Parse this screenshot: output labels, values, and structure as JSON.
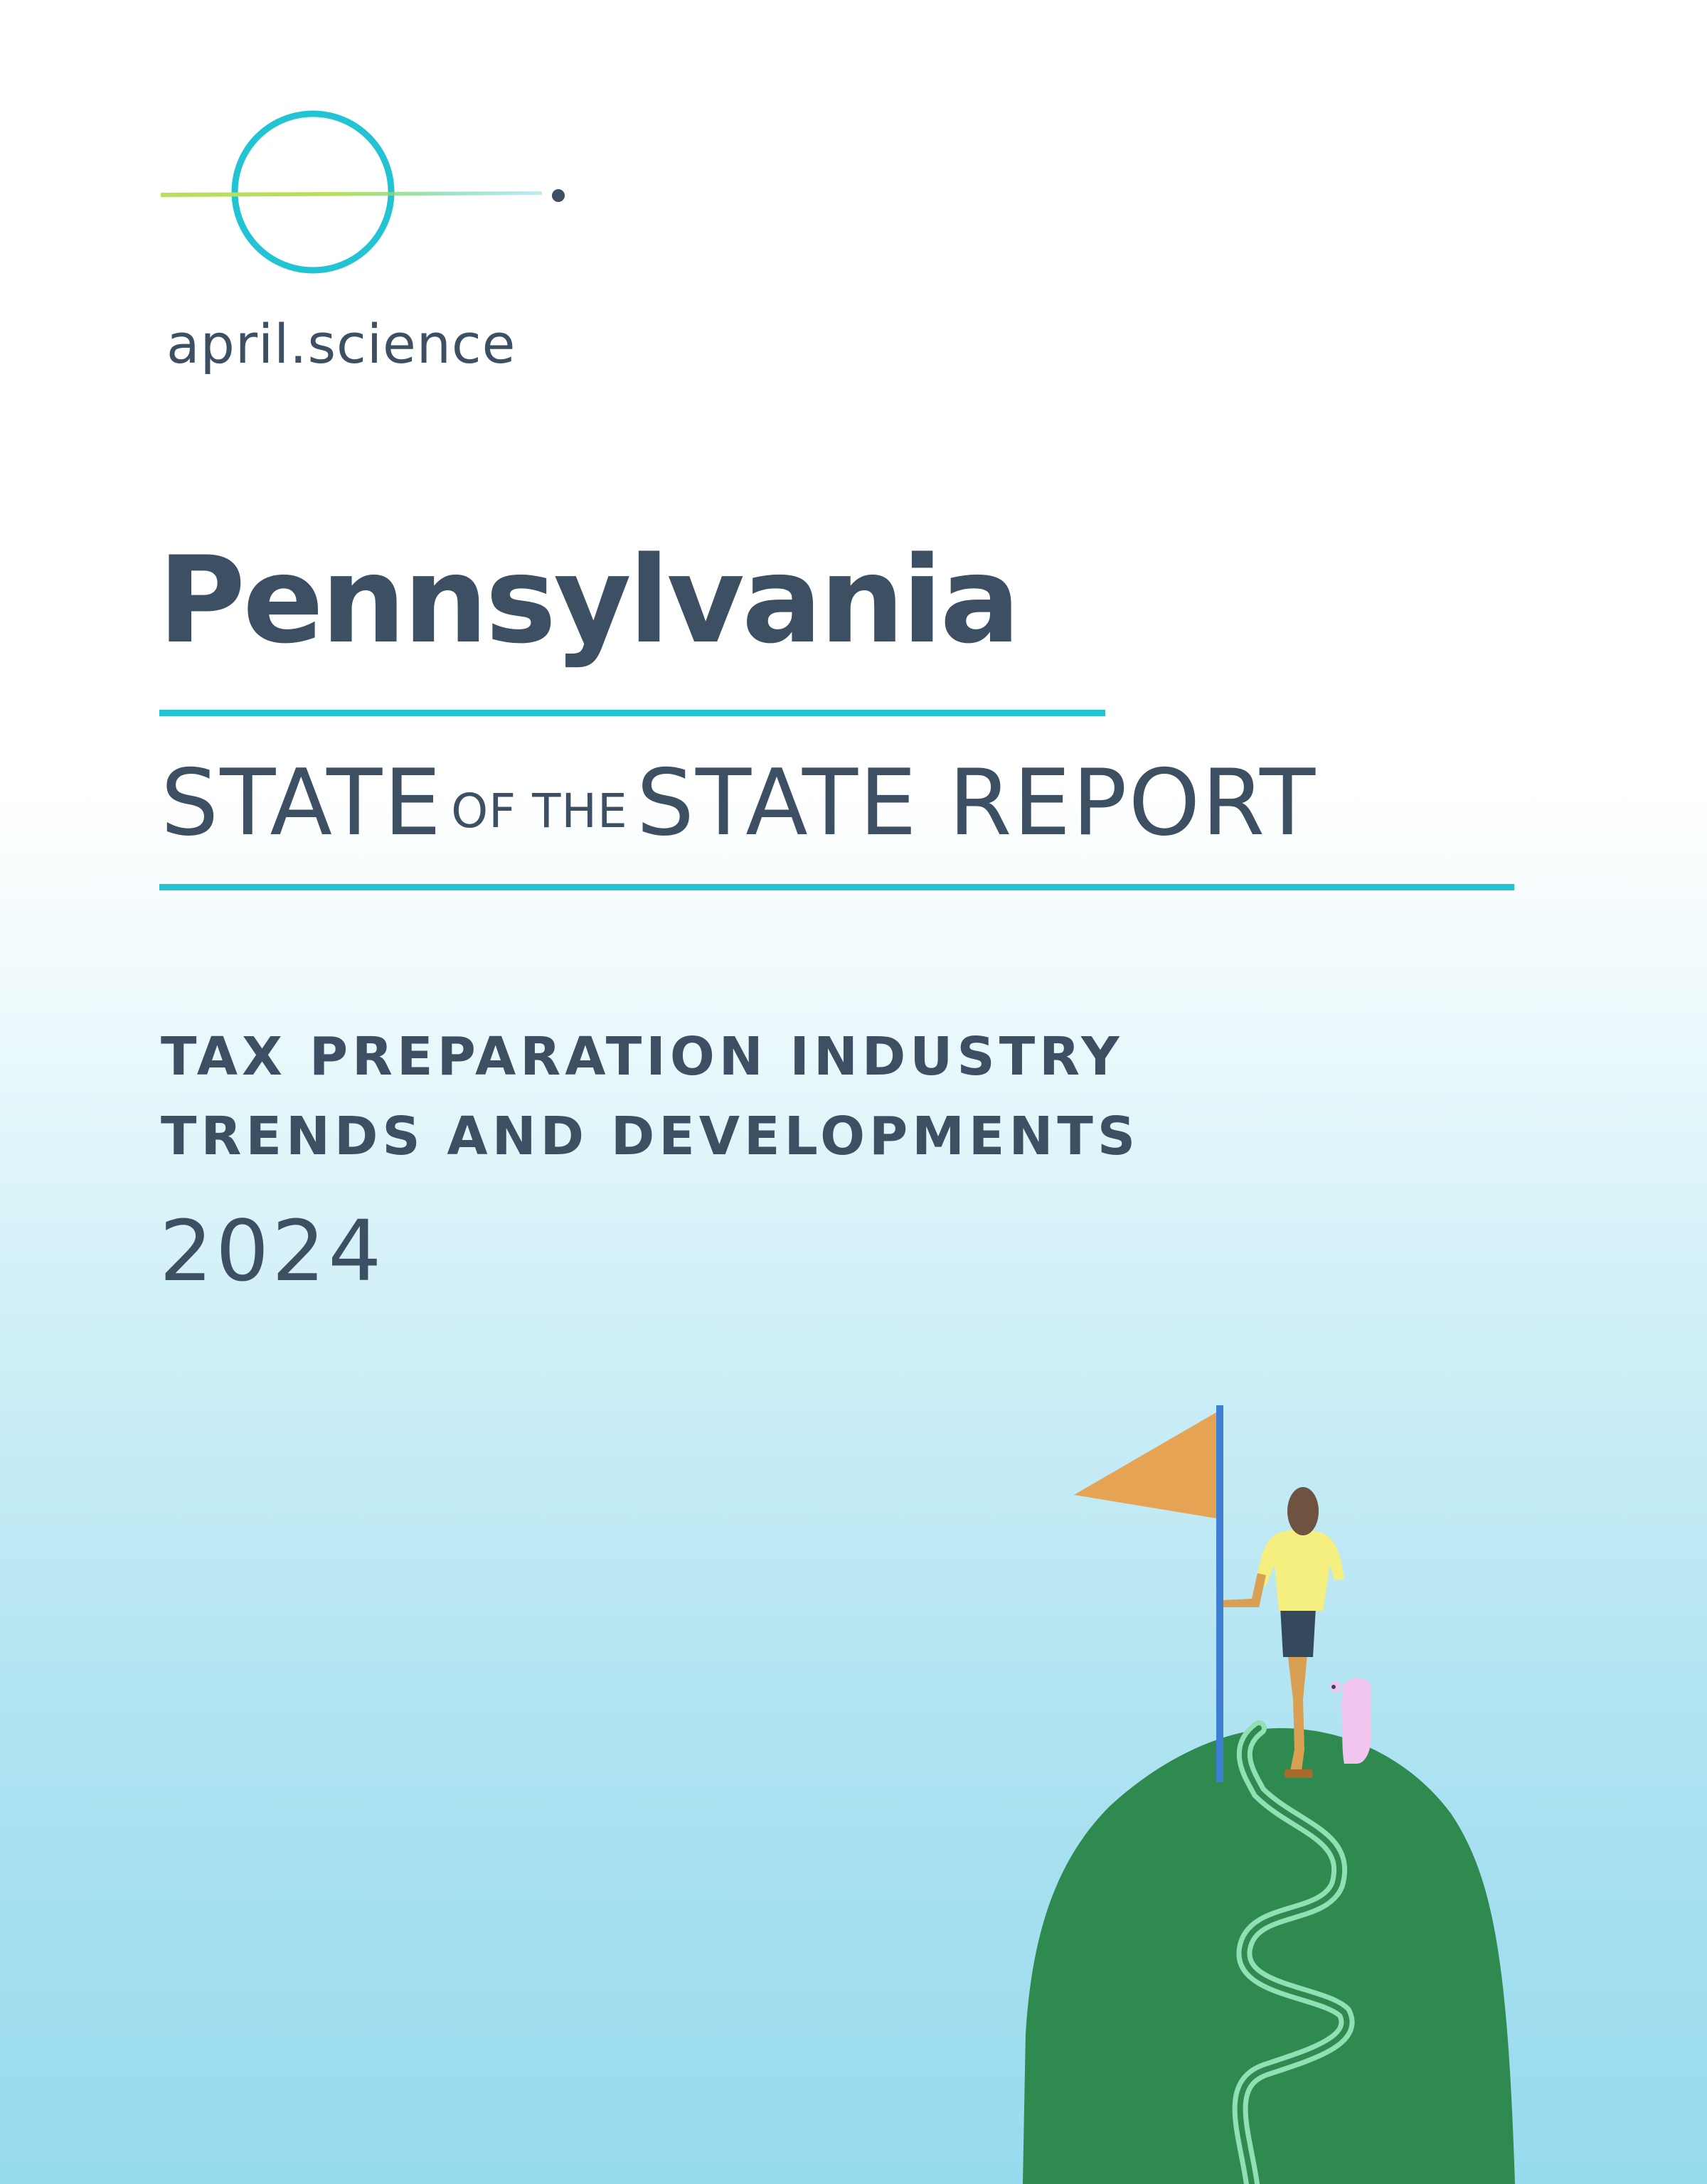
{
  "brand": {
    "name": "april.science",
    "logo_icon": "orbit-circle-logo-icon"
  },
  "report": {
    "state": "Pennsylvania",
    "title_part1": "STATE",
    "title_part2": "OF THE",
    "title_part3": "STATE REPORT",
    "subtitle_line1": "TAX PREPARATION INDUSTRY",
    "subtitle_line2": "TRENDS AND DEVELOPMENTS",
    "year": "2024"
  },
  "illustration": {
    "icon": "hill-with-flag-and-person-icon"
  },
  "colors": {
    "text": "#3d5063",
    "accent_rule": "#22c4d3",
    "logo_ring": "#22c4d3",
    "logo_line": "#b9de5a",
    "hill": "#2f8a4f",
    "path": "#8fe0b2",
    "flag": "#e7a354",
    "pole": "#3f7fd4"
  }
}
